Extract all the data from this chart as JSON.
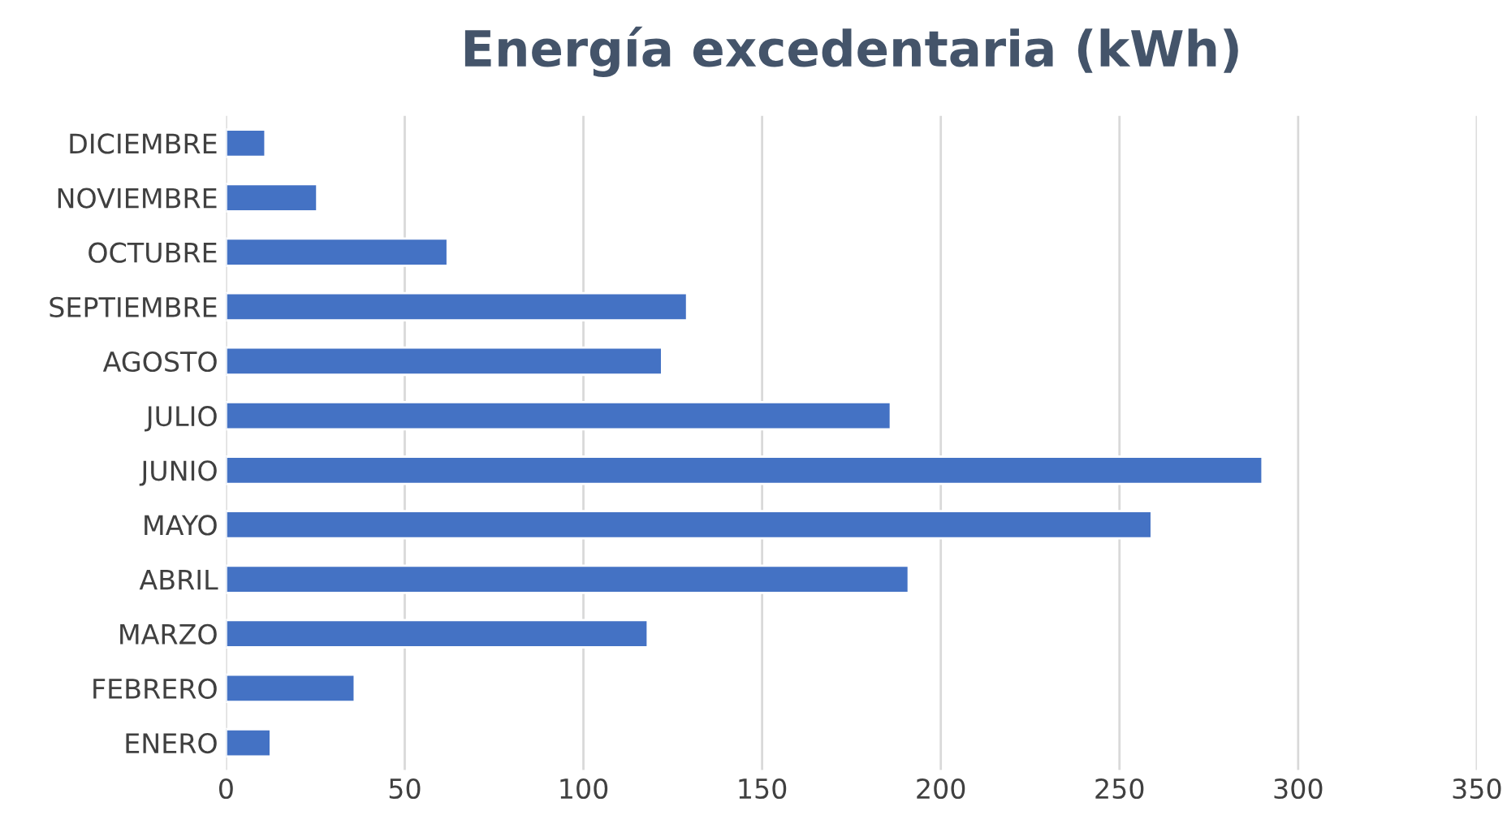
{
  "chart_data": {
    "type": "bar",
    "orientation": "horizontal",
    "title": "Energía excedentaria (kWh)",
    "categories": [
      "DICIEMBRE",
      "NOVIEMBRE",
      "OCTUBRE",
      "SEPTIEMBRE",
      "AGOSTO",
      "JULIO",
      "JUNIO",
      "MAYO",
      "ABRIL",
      "MARZO",
      "FEBRERO",
      "ENERO"
    ],
    "values": [
      11,
      25.5,
      62,
      129,
      122,
      186,
      290,
      259,
      191,
      118,
      36,
      12.5
    ],
    "color": "#4472c4",
    "xlim": [
      0,
      350
    ],
    "xticks": [
      0,
      50,
      100,
      150,
      200,
      250,
      300,
      350
    ],
    "grid": "x"
  }
}
